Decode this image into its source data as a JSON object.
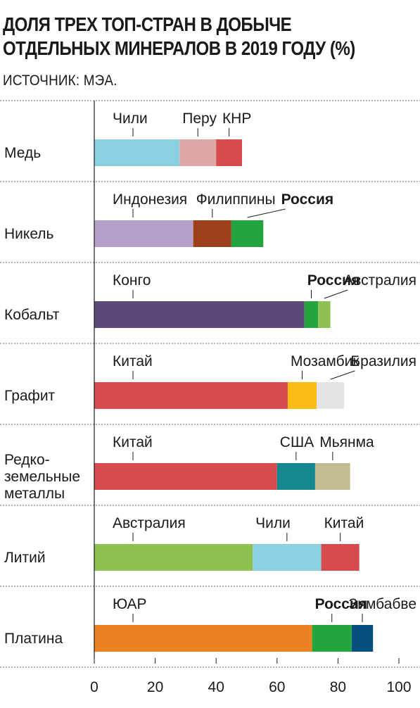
{
  "title_lines": [
    "ДОЛЯ ТРЕХ ТОП-СТРАН В ДОБЫЧЕ",
    "ОТДЕЛЬНЫХ МИНЕРАЛОВ В 2019 ГОДУ (%)"
  ],
  "subtitle": "ИСТОЧНИК: МЭА.",
  "chart_data": {
    "type": "bar",
    "orientation": "horizontal",
    "stacked": true,
    "title": "ДОЛЯ ТРЕХ ТОП-СТРАН В ДОБЫЧЕ ОТДЕЛЬНЫХ МИНЕРАЛОВ В 2019 ГОДУ (%)",
    "xlim": [
      0,
      100
    ],
    "xticks": [
      0,
      20,
      40,
      60,
      80,
      100
    ],
    "grid": false,
    "categories": [
      {
        "label_lines": [
          "Медь"
        ],
        "segments": [
          {
            "country": "Чили",
            "value": 28,
            "color": "#8ad0e0",
            "bold": false
          },
          {
            "country": "Перу",
            "value": 12,
            "color": "#dda9a7",
            "bold": false
          },
          {
            "country": "КНР",
            "value": 8.5,
            "color": "#d54b4e",
            "bold": false
          }
        ]
      },
      {
        "label_lines": [
          "Никель"
        ],
        "segments": [
          {
            "country": "Индонезия",
            "value": 32.5,
            "color": "#b4a0c8",
            "bold": false
          },
          {
            "country": "Филиппины",
            "value": 12.5,
            "color": "#9c3f1a",
            "bold": false
          },
          {
            "country": "Россия",
            "value": 10.5,
            "color": "#23a43f",
            "bold": true
          }
        ]
      },
      {
        "label_lines": [
          "Кобальт"
        ],
        "segments": [
          {
            "country": "Конго",
            "value": 69,
            "color": "#5b4a77",
            "bold": false
          },
          {
            "country": "Россия",
            "value": 4.5,
            "color": "#23a43f",
            "bold": true
          },
          {
            "country": "Австралия",
            "value": 4,
            "color": "#8fc152",
            "bold": false
          }
        ]
      },
      {
        "label_lines": [
          "Графит"
        ],
        "segments": [
          {
            "country": "Китай",
            "value": 63.5,
            "color": "#d54b4e",
            "bold": false
          },
          {
            "country": "Мозамбик",
            "value": 9.5,
            "color": "#fbbc13",
            "bold": false
          },
          {
            "country": "Бразилия",
            "value": 9,
            "color": "#e2e3e4",
            "bold": false
          }
        ]
      },
      {
        "label_lines": [
          "Редко-",
          "земельные",
          "металлы"
        ],
        "segments": [
          {
            "country": "Китай",
            "value": 60,
            "color": "#d54b4e",
            "bold": false
          },
          {
            "country": "США",
            "value": 12.5,
            "color": "#15878f",
            "bold": false
          },
          {
            "country": "Мьянма",
            "value": 11.5,
            "color": "#c4bd94",
            "bold": false
          }
        ]
      },
      {
        "label_lines": [
          "Литий"
        ],
        "segments": [
          {
            "country": "Австралия",
            "value": 52,
            "color": "#8fc152",
            "bold": false
          },
          {
            "country": "Чили",
            "value": 22.5,
            "color": "#8ad0e0",
            "bold": false
          },
          {
            "country": "Китай",
            "value": 12.5,
            "color": "#d54b4e",
            "bold": false
          }
        ]
      },
      {
        "label_lines": [
          "Платина"
        ],
        "segments": [
          {
            "country": "ЮАР",
            "value": 71.5,
            "color": "#ec8121",
            "bold": false
          },
          {
            "country": "Россия",
            "value": 13,
            "color": "#23a43f",
            "bold": true
          },
          {
            "country": "Зимбабве",
            "value": 7,
            "color": "#054f7f",
            "bold": false
          }
        ]
      }
    ]
  }
}
